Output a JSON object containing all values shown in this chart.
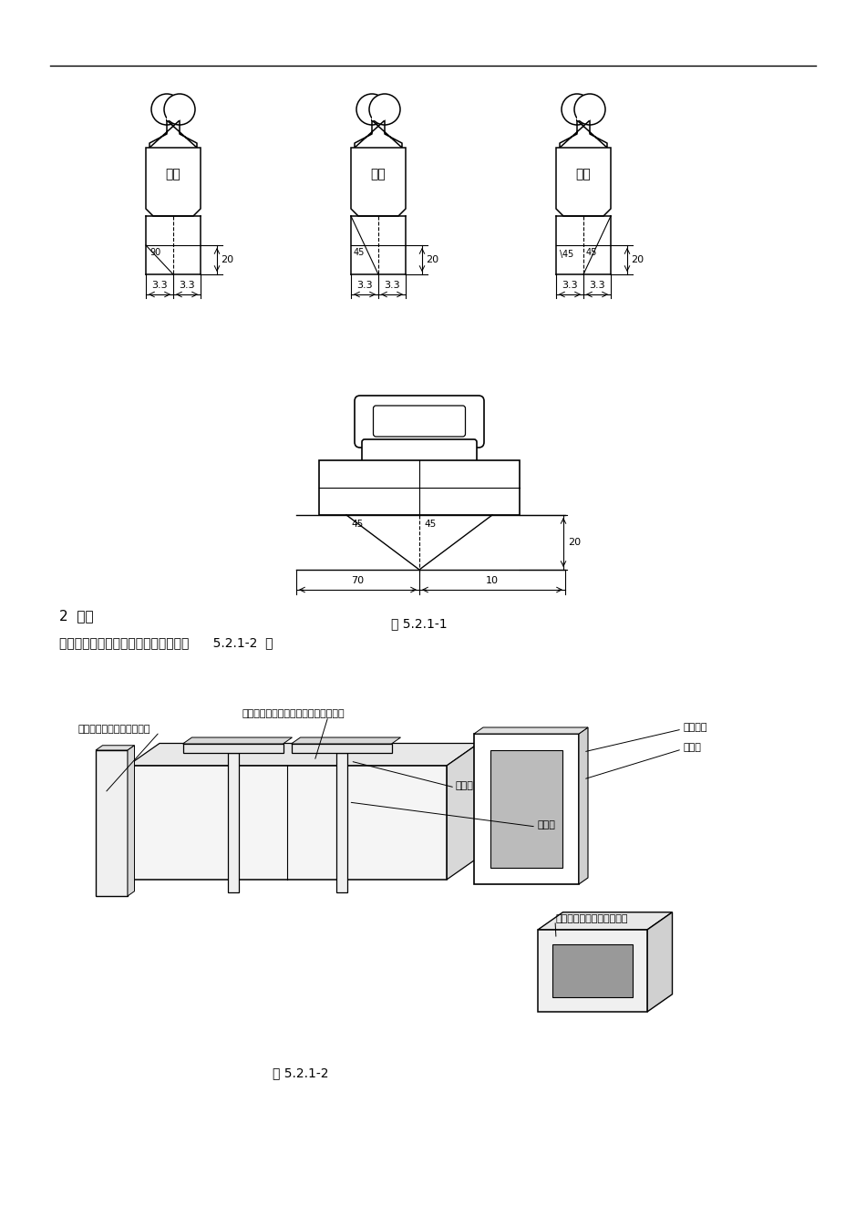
{
  "bg_color": "#ffffff",
  "line_color": "#000000",
  "fig5211_caption": "图 5.2.1-1",
  "fig5212_caption": "图 5.2.1-2",
  "section2_title": "2  模具",
  "section2_text": "复合风管、管口成型的公母型模具（图      5.2.1-2  ）",
  "pin_labels": [
    "红色",
    "蓝色",
    "黑色"
  ],
  "label_neigongmo": "内公模（木料制作空心模）",
  "label_waika": "外卡母模（槽、角锂或硬木制作而成）",
  "label_yajin": "压紧横杆",
  "label_dingwei": "定位销",
  "label_liuqin": "遂钓轴",
  "label_gongxing": "弓型架",
  "label_neigongmo2": "内公模（木料制作空心模）"
}
